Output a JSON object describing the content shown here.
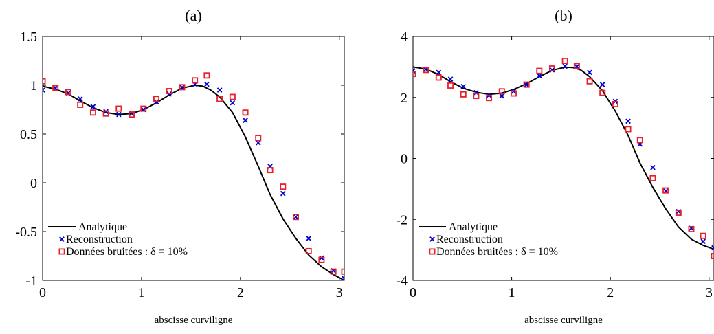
{
  "chart_data": [
    {
      "type": "line",
      "title": "(a)",
      "xlabel": "abscisse curviligne",
      "ylabel": "",
      "xlim": [
        0,
        3.05
      ],
      "ylim": [
        -1,
        1.5
      ],
      "xticks": [
        "0",
        "1",
        "2",
        "3"
      ],
      "yticks": [
        "-1",
        "-0.5",
        "0",
        "0.5",
        "1",
        "1.5"
      ],
      "legend_position": "bottom-left",
      "legend": [
        "Analytique",
        "Reconstruction",
        "Données bruitées : δ = 10%"
      ],
      "series": [
        {
          "name": "Analytique",
          "style": "line",
          "color": "#000000",
          "x": [
            0,
            0.13,
            0.26,
            0.38,
            0.51,
            0.64,
            0.77,
            0.9,
            1.02,
            1.15,
            1.28,
            1.41,
            1.54,
            1.62,
            1.7,
            1.79,
            1.92,
            2.05,
            2.18,
            2.3,
            2.43,
            2.56,
            2.69,
            2.82,
            2.94,
            3.05
          ],
          "y": [
            0.99,
            0.96,
            0.91,
            0.84,
            0.77,
            0.72,
            0.7,
            0.71,
            0.75,
            0.82,
            0.9,
            0.97,
            1.0,
            0.99,
            0.95,
            0.88,
            0.72,
            0.47,
            0.17,
            -0.12,
            -0.37,
            -0.57,
            -0.74,
            -0.86,
            -0.94,
            -1.0
          ]
        },
        {
          "name": "Reconstruction",
          "style": "x-marker",
          "color": "#0000d4",
          "x": [
            0,
            0.13,
            0.26,
            0.38,
            0.51,
            0.64,
            0.77,
            0.9,
            1.02,
            1.15,
            1.28,
            1.41,
            1.54,
            1.66,
            1.79,
            1.92,
            2.05,
            2.18,
            2.3,
            2.43,
            2.56,
            2.69,
            2.82,
            2.94,
            3.05
          ],
          "y": [
            0.95,
            0.97,
            0.92,
            0.86,
            0.78,
            0.73,
            0.7,
            0.71,
            0.75,
            0.83,
            0.91,
            0.98,
            1.01,
            1.01,
            0.95,
            0.82,
            0.64,
            0.41,
            0.17,
            -0.11,
            -0.35,
            -0.57,
            -0.77,
            -0.9,
            -0.98
          ]
        },
        {
          "name": "Données bruitées : δ = 10%",
          "style": "square-marker",
          "color": "#e8202a",
          "x": [
            0,
            0.13,
            0.26,
            0.38,
            0.51,
            0.64,
            0.77,
            0.9,
            1.02,
            1.15,
            1.28,
            1.41,
            1.54,
            1.66,
            1.79,
            1.92,
            2.05,
            2.18,
            2.3,
            2.43,
            2.56,
            2.69,
            2.82,
            2.94,
            3.05
          ],
          "y": [
            1.04,
            0.97,
            0.93,
            0.8,
            0.72,
            0.71,
            0.76,
            0.7,
            0.76,
            0.86,
            0.94,
            0.98,
            1.05,
            1.1,
            0.86,
            0.88,
            0.72,
            0.46,
            0.13,
            -0.04,
            -0.35,
            -0.7,
            -0.79,
            -0.91,
            -0.91
          ]
        }
      ]
    },
    {
      "type": "line",
      "title": "(b)",
      "xlabel": "abscisse curviligne",
      "ylabel": "",
      "xlim": [
        0,
        3.05
      ],
      "ylim": [
        -4,
        4
      ],
      "xticks": [
        "0",
        "1",
        "2",
        "3"
      ],
      "yticks": [
        "-4",
        "-2",
        "0",
        "2",
        "4"
      ],
      "legend_position": "bottom-left",
      "legend": [
        "Analytique",
        "Reconstruction",
        "Données bruitées : δ = 10%"
      ],
      "series": [
        {
          "name": "Analytique",
          "style": "line",
          "color": "#000000",
          "x": [
            0,
            0.13,
            0.26,
            0.38,
            0.51,
            0.64,
            0.77,
            0.9,
            1.02,
            1.15,
            1.28,
            1.41,
            1.54,
            1.62,
            1.7,
            1.79,
            1.92,
            2.05,
            2.18,
            2.3,
            2.43,
            2.56,
            2.69,
            2.82,
            2.94,
            3.05
          ],
          "y": [
            3.0,
            2.93,
            2.75,
            2.52,
            2.3,
            2.17,
            2.1,
            2.14,
            2.26,
            2.45,
            2.68,
            2.89,
            2.99,
            2.98,
            2.9,
            2.68,
            2.22,
            1.55,
            0.75,
            -0.15,
            -0.95,
            -1.65,
            -2.25,
            -2.65,
            -2.85,
            -2.98
          ]
        },
        {
          "name": "Reconstruction",
          "style": "x-marker",
          "color": "#0000d4",
          "x": [
            0,
            0.13,
            0.26,
            0.38,
            0.51,
            0.64,
            0.77,
            0.9,
            1.02,
            1.15,
            1.28,
            1.41,
            1.54,
            1.66,
            1.79,
            1.92,
            2.05,
            2.18,
            2.3,
            2.43,
            2.56,
            2.69,
            2.82,
            2.94,
            3.05
          ],
          "y": [
            2.87,
            2.92,
            2.82,
            2.6,
            2.36,
            2.16,
            2.07,
            2.05,
            2.2,
            2.41,
            2.71,
            2.9,
            3.02,
            3.01,
            2.82,
            2.42,
            1.87,
            1.22,
            0.47,
            -0.3,
            -1.07,
            -1.74,
            -2.29,
            -2.72,
            -2.93
          ]
        },
        {
          "name": "Données bruitées : δ = 10%",
          "style": "square-marker",
          "color": "#e8202a",
          "x": [
            0,
            0.13,
            0.26,
            0.38,
            0.51,
            0.64,
            0.77,
            0.9,
            1.02,
            1.15,
            1.28,
            1.41,
            1.54,
            1.66,
            1.79,
            1.92,
            2.05,
            2.18,
            2.3,
            2.43,
            2.56,
            2.69,
            2.82,
            2.94,
            3.05
          ],
          "y": [
            2.77,
            2.9,
            2.65,
            2.39,
            2.1,
            2.05,
            1.98,
            2.2,
            2.13,
            2.42,
            2.87,
            2.95,
            3.2,
            3.03,
            2.53,
            2.15,
            1.78,
            0.96,
            0.6,
            -0.65,
            -1.05,
            -1.78,
            -2.32,
            -2.54,
            -3.2
          ]
        }
      ]
    }
  ]
}
